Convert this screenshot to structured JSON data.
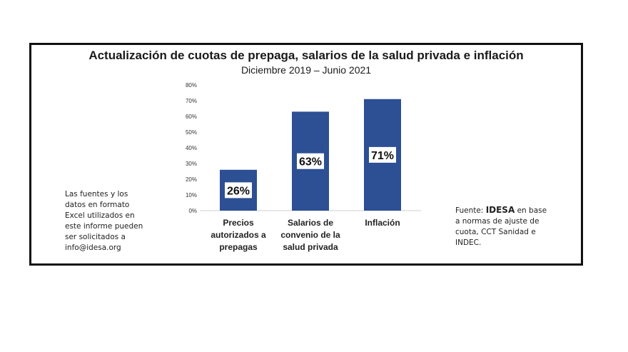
{
  "chart_data": {
    "type": "bar",
    "title": "Actualización de cuotas de prepaga, salarios de la salud privada e inflación",
    "subtitle": "Diciembre 2019 – Junio 2021",
    "categories": [
      [
        "Precios",
        "autorizados a",
        "prepagas"
      ],
      [
        "Salarios de",
        "convenio de la",
        "salud privada"
      ],
      [
        "Inflación"
      ]
    ],
    "values": [
      26,
      63,
      71
    ],
    "value_labels": [
      "26%",
      "63%",
      "71%"
    ],
    "yticks": [
      "0%",
      "10%",
      "20%",
      "30%",
      "40%",
      "50%",
      "60%",
      "70%",
      "80%"
    ],
    "ylim": [
      0,
      80
    ],
    "grid": false,
    "bar_color": "#2d4f93"
  },
  "side_note": {
    "lines": [
      "Las fuentes y los",
      "datos en formato",
      "Excel utilizados en",
      "este informe pueden",
      "ser solicitados a",
      "info@idesa.org"
    ]
  },
  "source": {
    "prefix": "Fuente: ",
    "org": "IDESA",
    "line1_suffix": " en base",
    "lines": [
      "a normas de ajuste de",
      "cuota, CCT Sanidad e",
      "INDEC."
    ]
  }
}
